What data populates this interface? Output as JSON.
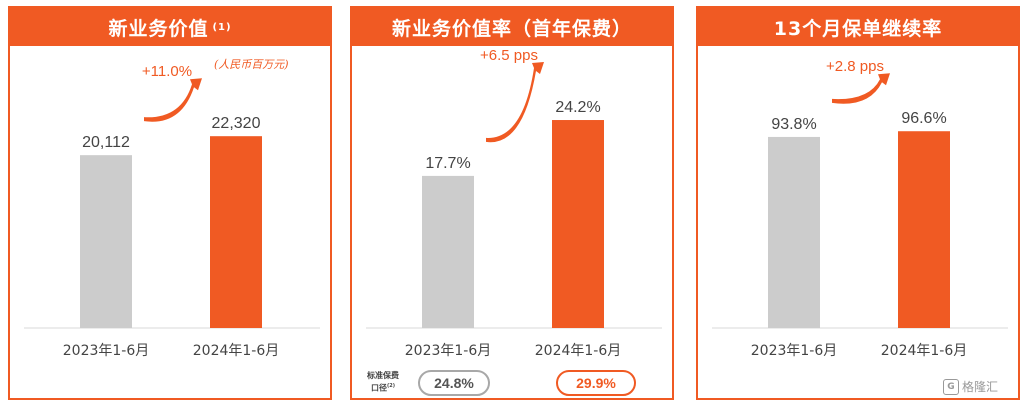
{
  "panels": [
    {
      "title": "新业务价值",
      "title_note": "(1)",
      "unit": "(人民币百万元)",
      "change": "+11.0%"
    },
    {
      "title": "新业务价值率（首年保费）",
      "title_note": "",
      "unit": "",
      "change": "+6.5 pps",
      "basis_label_line1": "标准保费",
      "basis_label_line2": "口径",
      "basis_label_note": "(2)",
      "basis_values": [
        "24.8%",
        "29.9%"
      ]
    },
    {
      "title": "13个月保单继续率",
      "title_note": "",
      "unit": "",
      "change": "+2.8 pps"
    }
  ],
  "watermark": {
    "logo": "G",
    "text": "格隆汇"
  },
  "colors": {
    "accent": "#f05a23",
    "grey_bar": "#cccccc",
    "text": "#444444"
  },
  "chart_data": [
    {
      "type": "bar",
      "title": "新业务价值",
      "categories": [
        "2023年1-6月",
        "2024年1-6月"
      ],
      "values": [
        20112,
        22320
      ],
      "labels": [
        "20,112",
        "22,320"
      ],
      "ylim": [
        0,
        32000
      ]
    },
    {
      "type": "bar",
      "title": "新业务价值率（首年保费）",
      "categories": [
        "2023年1-6月",
        "2024年1-6月"
      ],
      "values": [
        17.7,
        24.2
      ],
      "labels": [
        "17.7%",
        "24.2%"
      ],
      "ylim": [
        0,
        32
      ]
    },
    {
      "type": "bar",
      "title": "13个月保单继续率",
      "categories": [
        "2023年1-6月",
        "2024年1-6月"
      ],
      "values": [
        93.8,
        96.6
      ],
      "labels": [
        "93.8%",
        "96.6%"
      ],
      "ylim": [
        0,
        135
      ]
    }
  ]
}
